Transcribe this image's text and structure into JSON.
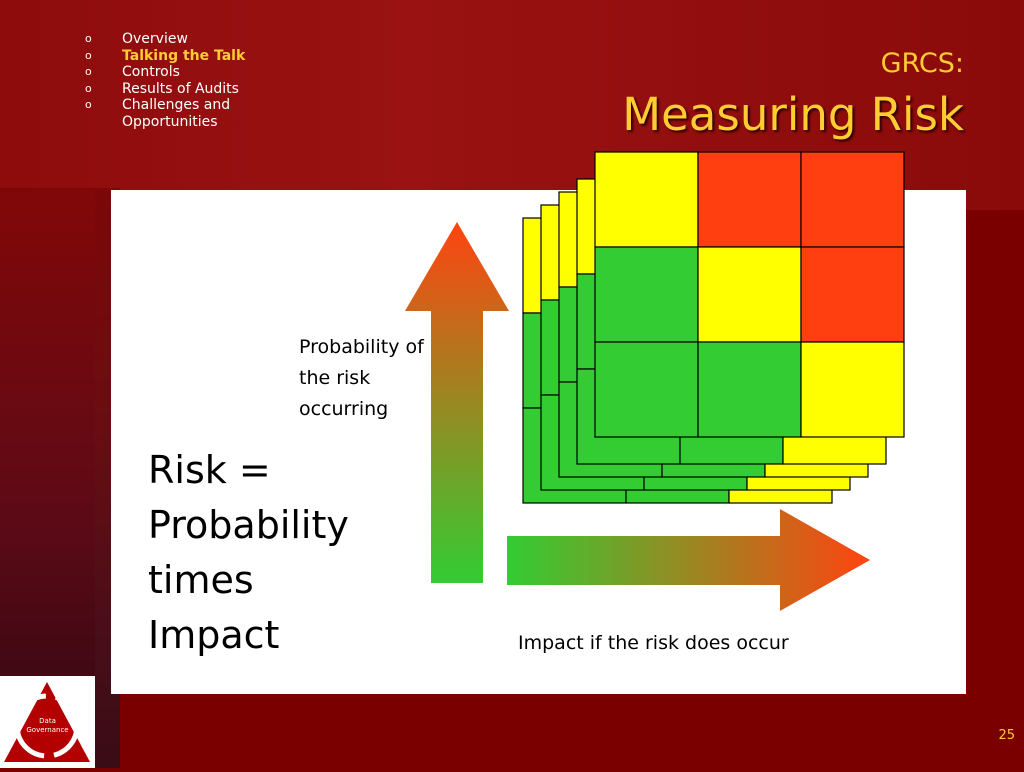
{
  "nav": {
    "items": [
      {
        "bullet": "o",
        "label": "Overview"
      },
      {
        "bullet": "o",
        "label": "Talking the Talk"
      },
      {
        "bullet": "o",
        "label": "Controls"
      },
      {
        "bullet": "o",
        "label": "Results of Audits"
      },
      {
        "bullet": "o",
        "label": "Challenges and Opportunities"
      }
    ],
    "active_index": 1
  },
  "title": {
    "small": "GRCS:",
    "big": "Measuring Risk"
  },
  "diagram": {
    "probability_label": "Probability of the risk occurring",
    "risk_formula": "Risk = Probability times Impact",
    "impact_label": "Impact if the risk does occur",
    "matrix_front": [
      [
        "yellow",
        "red",
        "red"
      ],
      [
        "green",
        "yellow",
        "red"
      ],
      [
        "green",
        "green",
        "yellow"
      ]
    ],
    "colors": {
      "green": "#33cc33",
      "yellow": "#ffff00",
      "red": "#ff3f0f",
      "arrow_start": "#33cc33",
      "arrow_end": "#ff4411"
    }
  },
  "logo": {
    "line1": "Data",
    "line2": "Governance"
  },
  "page_number": "25"
}
